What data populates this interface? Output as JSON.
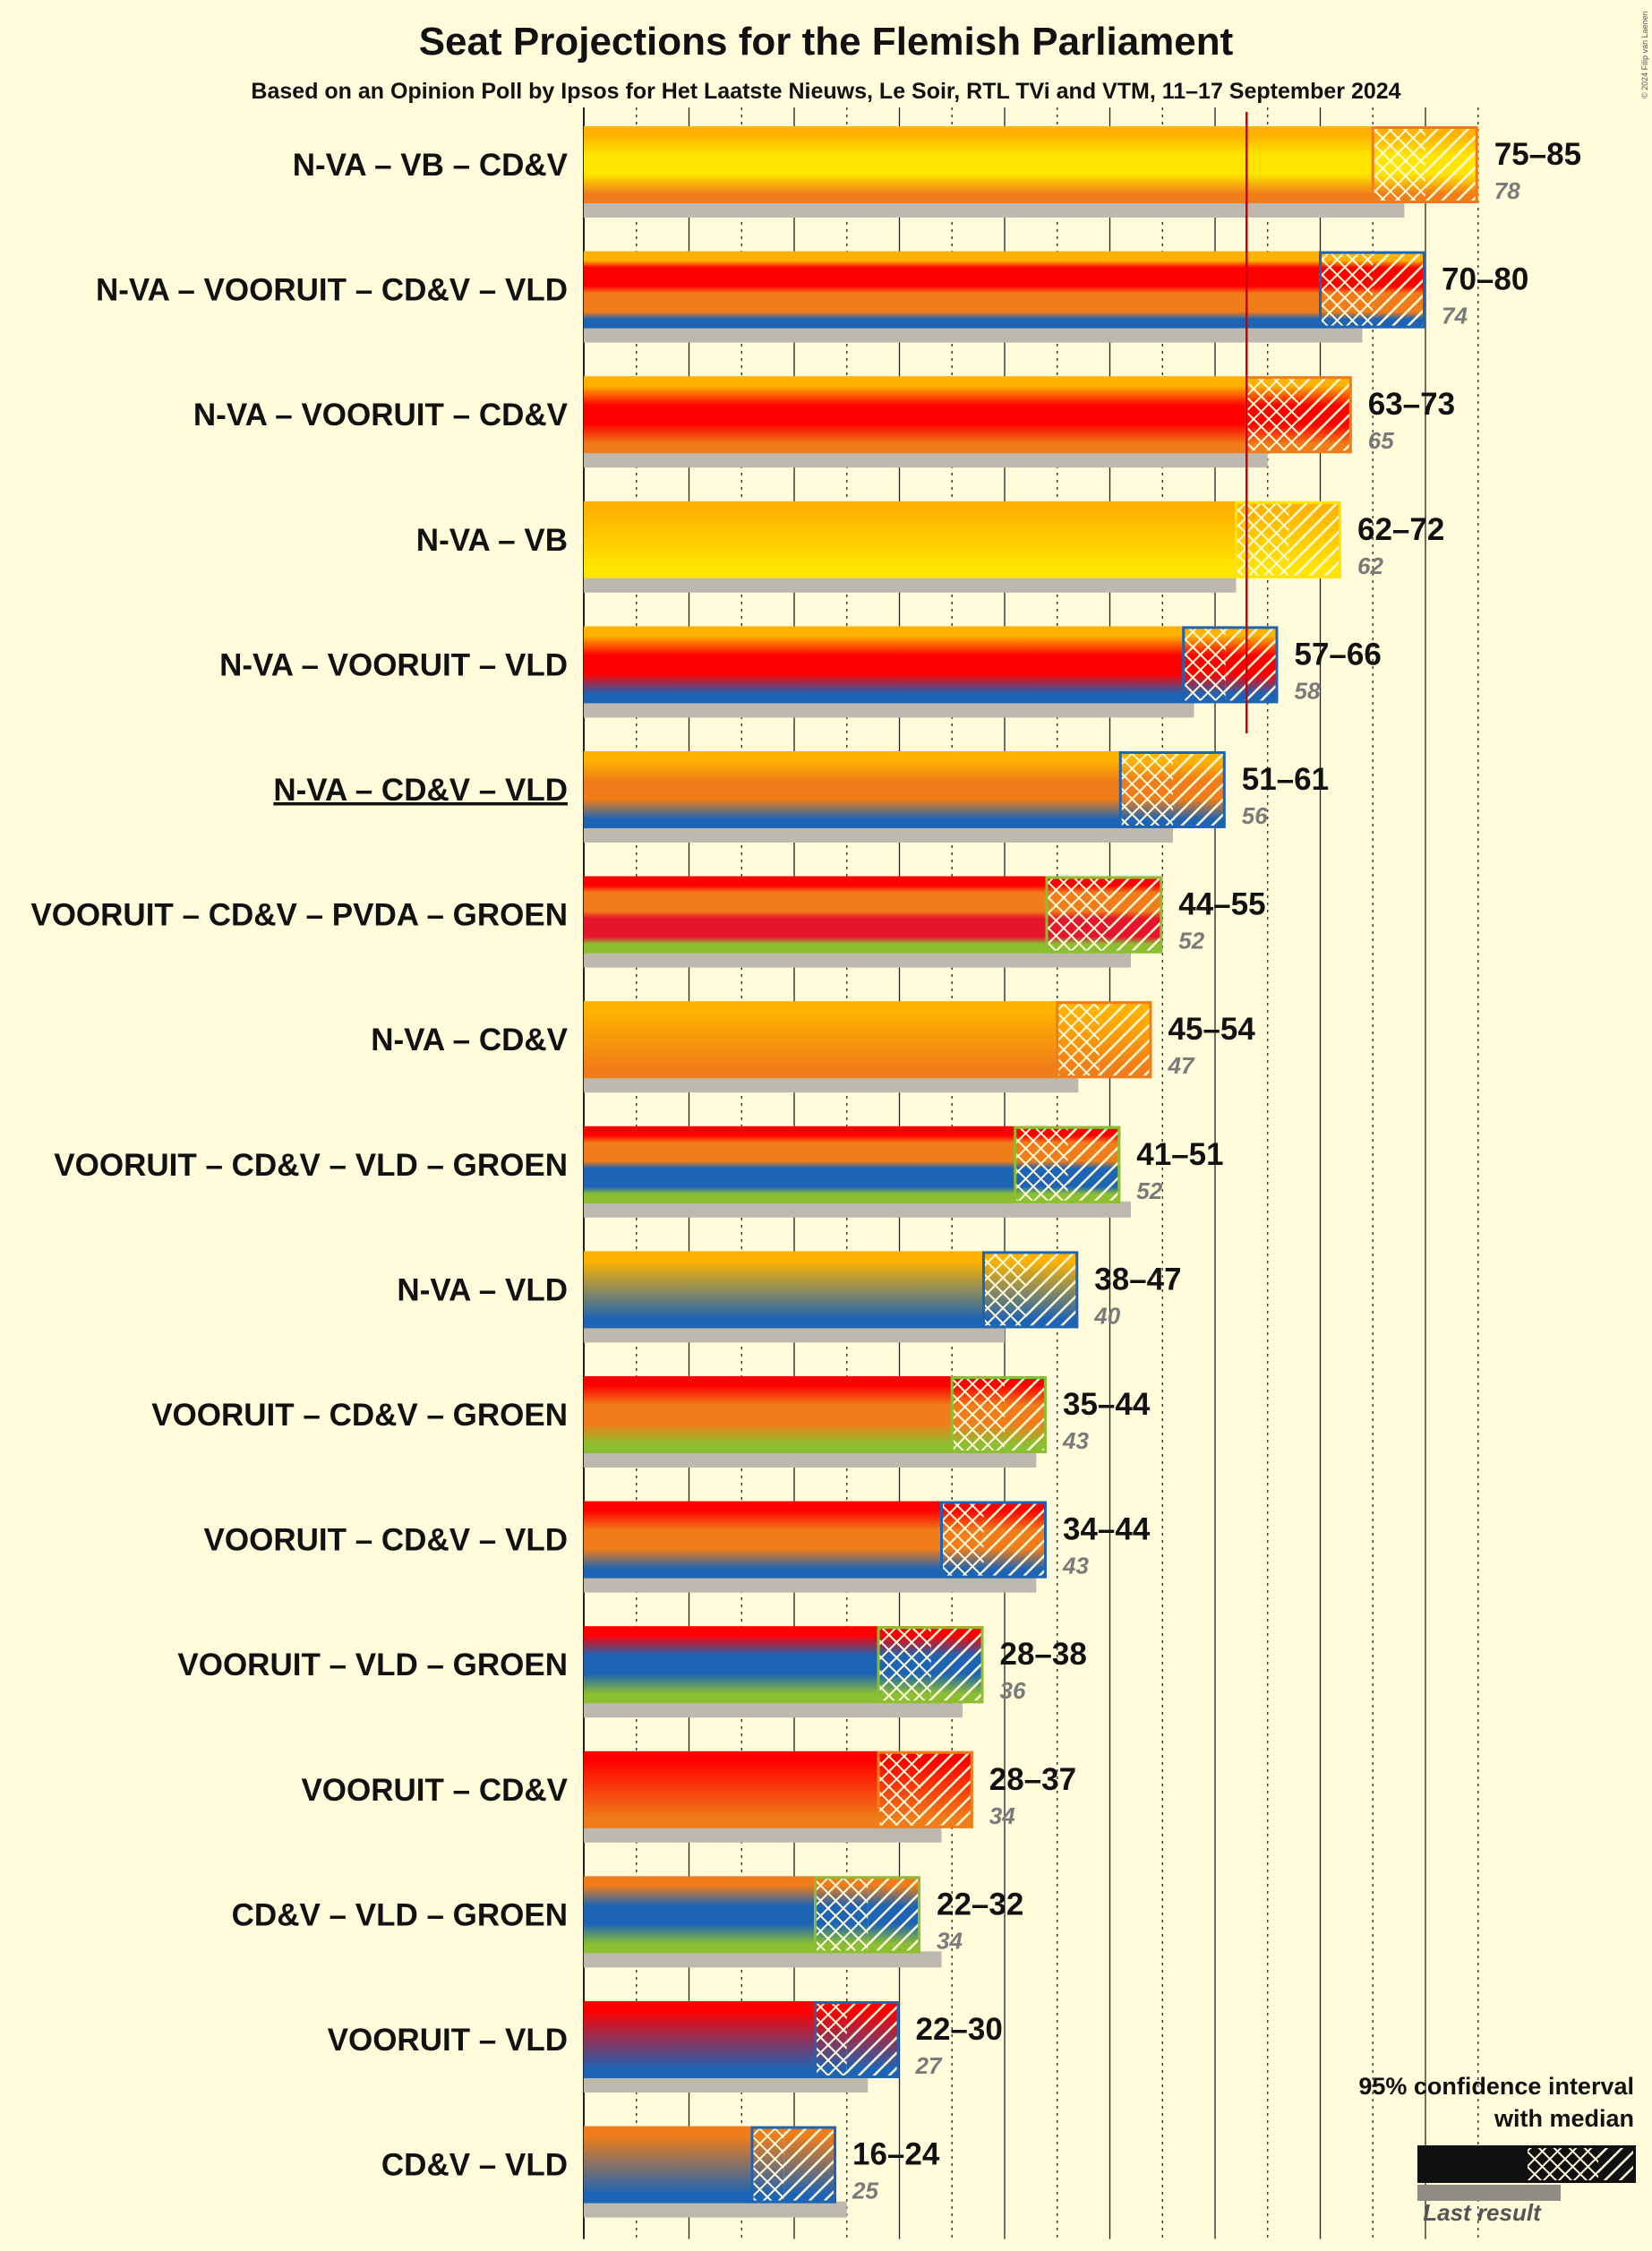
{
  "title": "Seat Projections for the Flemish Parliament",
  "subtitle": "Based on an Opinion Poll by Ipsos for Het Laatste Nieuws, Le Soir, RTL TVi and VTM, 11–17 September 2024",
  "copyright": "© 2024 Filip van Laenen",
  "colors": {
    "N-VA": "#FFB300",
    "VB": "#FFE500",
    "CD&V": "#F07D19",
    "VOORUIT": "#FF0000",
    "VLD": "#1E64B4",
    "PVDA": "#E6142D",
    "GROEN": "#8CBE32",
    "majority": "#CC0000",
    "last_result": "#BDB9AF",
    "background": "#FFFBDB"
  },
  "legend": {
    "title_line1": "95% confidence interval",
    "title_line2": "with median",
    "last_result_label": "Last result"
  },
  "chart_data": {
    "type": "bar",
    "orientation": "horizontal",
    "majority_line": 63,
    "grid_step": 5,
    "xlim": [
      0,
      85
    ],
    "current_government": "N-VA – CD&V – VLD",
    "coalitions": [
      {
        "label": "N-VA – VB – CD&V",
        "parties": [
          "N-VA",
          "VB",
          "CD&V"
        ],
        "low": 75,
        "median": 80,
        "high": 85,
        "range_label": "75–85",
        "last": 78,
        "last_label": "78"
      },
      {
        "label": "N-VA – VOORUIT – CD&V – VLD",
        "parties": [
          "N-VA",
          "VOORUIT",
          "CD&V",
          "VLD"
        ],
        "low": 70,
        "median": 75,
        "high": 80,
        "range_label": "70–80",
        "last": 74,
        "last_label": "74"
      },
      {
        "label": "N-VA – VOORUIT – CD&V",
        "parties": [
          "N-VA",
          "VOORUIT",
          "CD&V"
        ],
        "low": 63,
        "median": 68,
        "high": 73,
        "range_label": "63–73",
        "last": 65,
        "last_label": "65"
      },
      {
        "label": "N-VA – VB",
        "parties": [
          "N-VA",
          "VB"
        ],
        "low": 62,
        "median": 67,
        "high": 72,
        "range_label": "62–72",
        "last": 62,
        "last_label": "62"
      },
      {
        "label": "N-VA – VOORUIT – VLD",
        "parties": [
          "N-VA",
          "VOORUIT",
          "VLD"
        ],
        "low": 57,
        "median": 61,
        "high": 66,
        "range_label": "57–66",
        "last": 58,
        "last_label": "58"
      },
      {
        "label": "N-VA – CD&V – VLD",
        "parties": [
          "N-VA",
          "CD&V",
          "VLD"
        ],
        "low": 51,
        "median": 56,
        "high": 61,
        "range_label": "51–61",
        "last": 56,
        "last_label": "56"
      },
      {
        "label": "VOORUIT – CD&V – PVDA – GROEN",
        "parties": [
          "VOORUIT",
          "CD&V",
          "PVDA",
          "GROEN"
        ],
        "low": 44,
        "median": 50,
        "high": 55,
        "range_label": "44–55",
        "last": 52,
        "last_label": "52"
      },
      {
        "label": "N-VA – CD&V",
        "parties": [
          "N-VA",
          "CD&V"
        ],
        "low": 45,
        "median": 49,
        "high": 54,
        "range_label": "45–54",
        "last": 47,
        "last_label": "47"
      },
      {
        "label": "VOORUIT – CD&V – VLD – GROEN",
        "parties": [
          "VOORUIT",
          "CD&V",
          "VLD",
          "GROEN"
        ],
        "low": 41,
        "median": 46,
        "high": 51,
        "range_label": "41–51",
        "last": 52,
        "last_label": "52"
      },
      {
        "label": "N-VA – VLD",
        "parties": [
          "N-VA",
          "VLD"
        ],
        "low": 38,
        "median": 42,
        "high": 47,
        "range_label": "38–47",
        "last": 40,
        "last_label": "40"
      },
      {
        "label": "VOORUIT – CD&V – GROEN",
        "parties": [
          "VOORUIT",
          "CD&V",
          "GROEN"
        ],
        "low": 35,
        "median": 40,
        "high": 44,
        "range_label": "35–44",
        "last": 43,
        "last_label": "43"
      },
      {
        "label": "VOORUIT – CD&V – VLD",
        "parties": [
          "VOORUIT",
          "CD&V",
          "VLD"
        ],
        "low": 34,
        "median": 38,
        "high": 44,
        "range_label": "34–44",
        "last": 43,
        "last_label": "43"
      },
      {
        "label": "VOORUIT – VLD – GROEN",
        "parties": [
          "VOORUIT",
          "VLD",
          "GROEN"
        ],
        "low": 28,
        "median": 33,
        "high": 38,
        "range_label": "28–38",
        "last": 36,
        "last_label": "36"
      },
      {
        "label": "VOORUIT – CD&V",
        "parties": [
          "VOORUIT",
          "CD&V"
        ],
        "low": 28,
        "median": 32,
        "high": 37,
        "range_label": "28–37",
        "last": 34,
        "last_label": "34"
      },
      {
        "label": "CD&V – VLD – GROEN",
        "parties": [
          "CD&V",
          "VLD",
          "GROEN"
        ],
        "low": 22,
        "median": 27,
        "high": 32,
        "range_label": "22–32",
        "last": 34,
        "last_label": "34"
      },
      {
        "label": "VOORUIT – VLD",
        "parties": [
          "VOORUIT",
          "VLD"
        ],
        "low": 22,
        "median": 25,
        "high": 30,
        "range_label": "22–30",
        "last": 27,
        "last_label": "27"
      },
      {
        "label": "CD&V – VLD",
        "parties": [
          "CD&V",
          "VLD"
        ],
        "low": 16,
        "median": 19,
        "high": 24,
        "range_label": "16–24",
        "last": 25,
        "last_label": "25"
      }
    ]
  }
}
